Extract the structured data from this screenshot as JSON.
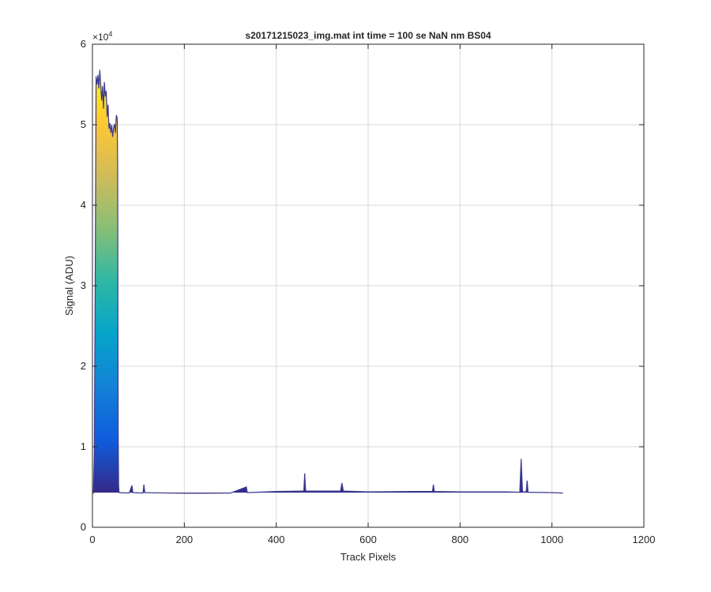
{
  "chart_data": {
    "type": "area",
    "title": "s20171215023_img.mat int time = 100 se  NaN nm BS04",
    "xlabel": "Track Pixels",
    "ylabel": "Signal (ADU)",
    "y_exponent_label": "×10",
    "y_exponent": "4",
    "xlim": [
      0,
      1200
    ],
    "ylim": [
      0,
      60000
    ],
    "x_ticks": [
      0,
      200,
      400,
      600,
      800,
      1000,
      1200
    ],
    "y_ticks": [
      0,
      1,
      2,
      3,
      4,
      5,
      6
    ],
    "y_tick_multiplier": 10000,
    "grid": true,
    "colormap": "parula",
    "colormap_stops": [
      "#352a87",
      "#0f5cdd",
      "#1481d6",
      "#06a4ca",
      "#2eb7a4",
      "#87bf77",
      "#d1bb59",
      "#fec832",
      "#f9fb0e"
    ],
    "baseline": 4300,
    "points": [
      [
        0,
        4300
      ],
      [
        2,
        4250
      ],
      [
        4,
        9000
      ],
      [
        6,
        30000
      ],
      [
        8,
        56000
      ],
      [
        10,
        55000
      ],
      [
        12,
        56200
      ],
      [
        14,
        54500
      ],
      [
        16,
        56800
      ],
      [
        18,
        55000
      ],
      [
        20,
        53000
      ],
      [
        22,
        54800
      ],
      [
        24,
        52000
      ],
      [
        26,
        55300
      ],
      [
        28,
        53500
      ],
      [
        30,
        54200
      ],
      [
        32,
        51000
      ],
      [
        34,
        52500
      ],
      [
        36,
        49500
      ],
      [
        38,
        50200
      ],
      [
        40,
        49000
      ],
      [
        42,
        50000
      ],
      [
        44,
        48500
      ],
      [
        46,
        49600
      ],
      [
        48,
        50100
      ],
      [
        50,
        49000
      ],
      [
        52,
        51200
      ],
      [
        54,
        50800
      ],
      [
        55,
        44000
      ],
      [
        56,
        12000
      ],
      [
        57,
        5200
      ],
      [
        58,
        4300
      ],
      [
        80,
        4250
      ],
      [
        86,
        5200
      ],
      [
        88,
        4300
      ],
      [
        110,
        4250
      ],
      [
        112,
        5300
      ],
      [
        114,
        4300
      ],
      [
        200,
        4220
      ],
      [
        300,
        4250
      ],
      [
        335,
        5000
      ],
      [
        337,
        4300
      ],
      [
        400,
        4450
      ],
      [
        460,
        4500
      ],
      [
        462,
        6700
      ],
      [
        464,
        4500
      ],
      [
        540,
        4500
      ],
      [
        543,
        5500
      ],
      [
        546,
        4500
      ],
      [
        600,
        4400
      ],
      [
        700,
        4450
      ],
      [
        740,
        4450
      ],
      [
        742,
        5300
      ],
      [
        744,
        4450
      ],
      [
        800,
        4400
      ],
      [
        900,
        4400
      ],
      [
        930,
        4350
      ],
      [
        933,
        8500
      ],
      [
        936,
        4400
      ],
      [
        944,
        4400
      ],
      [
        946,
        5800
      ],
      [
        948,
        4350
      ],
      [
        1000,
        4300
      ],
      [
        1024,
        4250
      ]
    ]
  }
}
